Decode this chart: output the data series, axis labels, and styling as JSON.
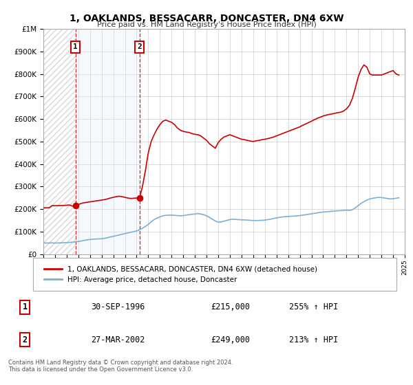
{
  "title": "1, OAKLANDS, BESSACARR, DONCASTER, DN4 6XW",
  "subtitle": "Price paid vs. HM Land Registry's House Price Index (HPI)",
  "background_color": "#ffffff",
  "plot_bg_color": "#ffffff",
  "grid_color": "#cccccc",
  "sale1_date": 1996.75,
  "sale1_price": 215000,
  "sale1_label": "1",
  "sale2_date": 2002.25,
  "sale2_price": 249000,
  "sale2_label": "2",
  "hpi_line_color": "#7ab0d4",
  "price_line_color": "#cc0000",
  "marker_color": "#cc0000",
  "shade_color": "#ddeeff",
  "hatch_color": "#cccccc",
  "ylim": [
    0,
    1000000
  ],
  "xlim": [
    1994,
    2025
  ],
  "yticks": [
    0,
    100000,
    200000,
    300000,
    400000,
    500000,
    600000,
    700000,
    800000,
    900000,
    1000000
  ],
  "ytick_labels": [
    "£0",
    "£100K",
    "£200K",
    "£300K",
    "£400K",
    "£500K",
    "£600K",
    "£700K",
    "£800K",
    "£900K",
    "£1M"
  ],
  "legend_label_red": "1, OAKLANDS, BESSACARR, DONCASTER, DN4 6XW (detached house)",
  "legend_label_blue": "HPI: Average price, detached house, Doncaster",
  "table_row1": [
    "1",
    "30-SEP-1996",
    "£215,000",
    "255% ↑ HPI"
  ],
  "table_row2": [
    "2",
    "27-MAR-2002",
    "£249,000",
    "213% ↑ HPI"
  ],
  "footer": "Contains HM Land Registry data © Crown copyright and database right 2024.\nThis data is licensed under the Open Government Licence v3.0.",
  "hpi_data_x": [
    1994.0,
    1994.25,
    1994.5,
    1994.75,
    1995.0,
    1995.25,
    1995.5,
    1995.75,
    1996.0,
    1996.25,
    1996.5,
    1996.75,
    1997.0,
    1997.25,
    1997.5,
    1997.75,
    1998.0,
    1998.25,
    1998.5,
    1998.75,
    1999.0,
    1999.25,
    1999.5,
    1999.75,
    2000.0,
    2000.25,
    2000.5,
    2000.75,
    2001.0,
    2001.25,
    2001.5,
    2001.75,
    2002.0,
    2002.25,
    2002.5,
    2002.75,
    2003.0,
    2003.25,
    2003.5,
    2003.75,
    2004.0,
    2004.25,
    2004.5,
    2004.75,
    2005.0,
    2005.25,
    2005.5,
    2005.75,
    2006.0,
    2006.25,
    2006.5,
    2006.75,
    2007.0,
    2007.25,
    2007.5,
    2007.75,
    2008.0,
    2008.25,
    2008.5,
    2008.75,
    2009.0,
    2009.25,
    2009.5,
    2009.75,
    2010.0,
    2010.25,
    2010.5,
    2010.75,
    2011.0,
    2011.25,
    2011.5,
    2011.75,
    2012.0,
    2012.25,
    2012.5,
    2012.75,
    2013.0,
    2013.25,
    2013.5,
    2013.75,
    2014.0,
    2014.25,
    2014.5,
    2014.75,
    2015.0,
    2015.25,
    2015.5,
    2015.75,
    2016.0,
    2016.25,
    2016.5,
    2016.75,
    2017.0,
    2017.25,
    2017.5,
    2017.75,
    2018.0,
    2018.25,
    2018.5,
    2018.75,
    2019.0,
    2019.25,
    2019.5,
    2019.75,
    2020.0,
    2020.25,
    2020.5,
    2020.75,
    2021.0,
    2021.25,
    2021.5,
    2021.75,
    2022.0,
    2022.25,
    2022.5,
    2022.75,
    2023.0,
    2023.25,
    2023.5,
    2023.75,
    2024.0,
    2024.25,
    2024.5
  ],
  "hpi_data_y": [
    50000,
    49000,
    49500,
    50000,
    49000,
    49500,
    50000,
    50500,
    51000,
    52000,
    53000,
    54000,
    56000,
    58000,
    61000,
    63000,
    65000,
    66000,
    67000,
    67500,
    68000,
    70000,
    73000,
    76000,
    79000,
    82000,
    85000,
    88000,
    91000,
    94000,
    97000,
    100000,
    103000,
    108000,
    115000,
    123000,
    132000,
    143000,
    153000,
    160000,
    165000,
    170000,
    172000,
    173000,
    173000,
    172000,
    171000,
    170000,
    171000,
    173000,
    175000,
    177000,
    178000,
    180000,
    178000,
    175000,
    170000,
    163000,
    155000,
    147000,
    142000,
    143000,
    146000,
    150000,
    153000,
    155000,
    154000,
    153000,
    152000,
    152000,
    151000,
    150000,
    149000,
    149000,
    149500,
    150000,
    151000,
    153000,
    155000,
    158000,
    161000,
    163000,
    165000,
    166000,
    167000,
    168000,
    169000,
    170000,
    171000,
    173000,
    175000,
    177000,
    179000,
    181000,
    183000,
    185000,
    187000,
    188000,
    189000,
    190000,
    191000,
    192000,
    193000,
    194000,
    195000,
    194000,
    197000,
    205000,
    215000,
    225000,
    233000,
    240000,
    245000,
    248000,
    250000,
    252000,
    251000,
    249000,
    247000,
    245000,
    246000,
    248000,
    250000
  ],
  "price_data_x": [
    1994.0,
    1994.25,
    1994.5,
    1994.75,
    1995.0,
    1995.25,
    1995.5,
    1995.75,
    1996.0,
    1996.25,
    1996.5,
    1996.75,
    1997.0,
    1997.25,
    1997.5,
    1997.75,
    1998.0,
    1998.25,
    1998.5,
    1998.75,
    1999.0,
    1999.25,
    1999.5,
    1999.75,
    2000.0,
    2000.25,
    2000.5,
    2000.75,
    2001.0,
    2001.25,
    2001.5,
    2001.75,
    2002.0,
    2002.25,
    2002.5,
    2002.75,
    2003.0,
    2003.25,
    2003.5,
    2003.75,
    2004.0,
    2004.25,
    2004.5,
    2004.75,
    2005.0,
    2005.25,
    2005.5,
    2005.75,
    2006.0,
    2006.25,
    2006.5,
    2006.75,
    2007.0,
    2007.25,
    2007.5,
    2007.75,
    2008.0,
    2008.25,
    2008.5,
    2008.75,
    2009.0,
    2009.25,
    2009.5,
    2009.75,
    2010.0,
    2010.25,
    2010.5,
    2010.75,
    2011.0,
    2011.25,
    2011.5,
    2011.75,
    2012.0,
    2012.25,
    2012.5,
    2012.75,
    2013.0,
    2013.25,
    2013.5,
    2013.75,
    2014.0,
    2014.25,
    2014.5,
    2014.75,
    2015.0,
    2015.25,
    2015.5,
    2015.75,
    2016.0,
    2016.25,
    2016.5,
    2016.75,
    2017.0,
    2017.25,
    2017.5,
    2017.75,
    2018.0,
    2018.25,
    2018.5,
    2018.75,
    2019.0,
    2019.25,
    2019.5,
    2019.75,
    2020.0,
    2020.25,
    2020.5,
    2020.75,
    2021.0,
    2021.25,
    2021.5,
    2021.75,
    2022.0,
    2022.25,
    2022.5,
    2022.75,
    2023.0,
    2023.25,
    2023.5,
    2023.75,
    2024.0,
    2024.25,
    2024.5
  ],
  "price_data_y": [
    205000,
    205500,
    206000,
    215000,
    215000,
    215000,
    215500,
    216000,
    217000,
    218000,
    213000,
    215000,
    220000,
    225000,
    228000,
    230000,
    232000,
    234000,
    236000,
    238000,
    240000,
    242000,
    245000,
    249000,
    252000,
    255000,
    257000,
    255000,
    252000,
    249000,
    247000,
    248000,
    249000,
    249000,
    300000,
    370000,
    450000,
    500000,
    530000,
    555000,
    575000,
    590000,
    595000,
    590000,
    585000,
    575000,
    560000,
    550000,
    545000,
    542000,
    540000,
    535000,
    532000,
    530000,
    525000,
    515000,
    505000,
    490000,
    480000,
    470000,
    495000,
    510000,
    520000,
    525000,
    530000,
    525000,
    520000,
    515000,
    510000,
    508000,
    505000,
    502000,
    500000,
    503000,
    505000,
    508000,
    510000,
    513000,
    516000,
    520000,
    525000,
    530000,
    535000,
    540000,
    545000,
    550000,
    555000,
    560000,
    565000,
    572000,
    578000,
    584000,
    590000,
    597000,
    603000,
    608000,
    613000,
    617000,
    620000,
    622000,
    625000,
    628000,
    630000,
    635000,
    645000,
    660000,
    690000,
    735000,
    785000,
    820000,
    840000,
    830000,
    800000,
    795000,
    795000,
    795000,
    795000,
    800000,
    805000,
    810000,
    815000,
    800000,
    795000
  ]
}
